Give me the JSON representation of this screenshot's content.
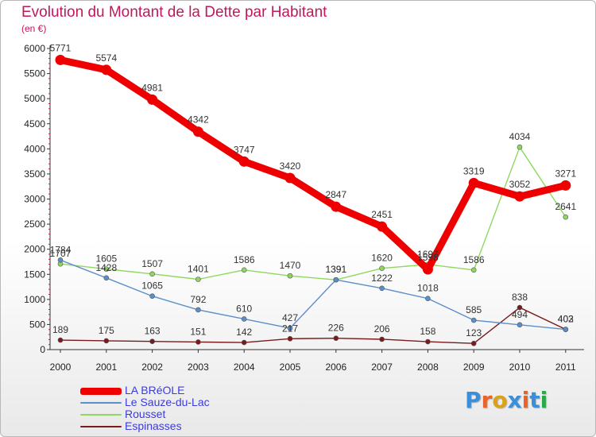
{
  "title": "Evolution du Montant de la Dette par Habitant",
  "unit": "(en €)",
  "logo": {
    "text": "Proxiti",
    "colors": [
      "#3a8fd8",
      "#e8632a",
      "#d9a21a",
      "#3a8fd8",
      "#e8632a",
      "#3a8fd8",
      "#2aa84a"
    ]
  },
  "chart_data": {
    "type": "line",
    "title": "Evolution du Montant de la Dette par Habitant",
    "ylabel": "(en €)",
    "xlabel": "",
    "x": [
      "2000",
      "2001",
      "2002",
      "2003",
      "2004",
      "2005",
      "2006",
      "2007",
      "2008",
      "2009",
      "2010",
      "2011"
    ],
    "ylim": [
      0,
      6000
    ],
    "yticks": [
      0,
      500,
      1000,
      1500,
      2000,
      2500,
      3000,
      3500,
      4000,
      4500,
      5000,
      5500,
      6000
    ],
    "grid": false,
    "legend_position": "bottom-left",
    "series": [
      {
        "name": "LA BRéOLE",
        "color": "#ee0000",
        "values": [
          5771,
          5574,
          4981,
          4342,
          3747,
          3420,
          2847,
          2451,
          1598,
          3319,
          3052,
          3271
        ]
      },
      {
        "name": "Le Sauze-du-Lac",
        "color": "#5b8fc8",
        "values": [
          1784,
          1428,
          1065,
          792,
          610,
          427,
          1391,
          1222,
          1018,
          585,
          494,
          402
        ]
      },
      {
        "name": "Rousset",
        "color": "#8fd860",
        "values": [
          1707,
          1605,
          1507,
          1401,
          1586,
          1470,
          1391,
          1620,
          1697,
          1586,
          4034,
          2641
        ]
      },
      {
        "name": "Espinasses",
        "color": "#7a1a1a",
        "values": [
          189,
          175,
          163,
          151,
          142,
          217,
          226,
          206,
          158,
          123,
          838,
          403
        ]
      }
    ]
  }
}
